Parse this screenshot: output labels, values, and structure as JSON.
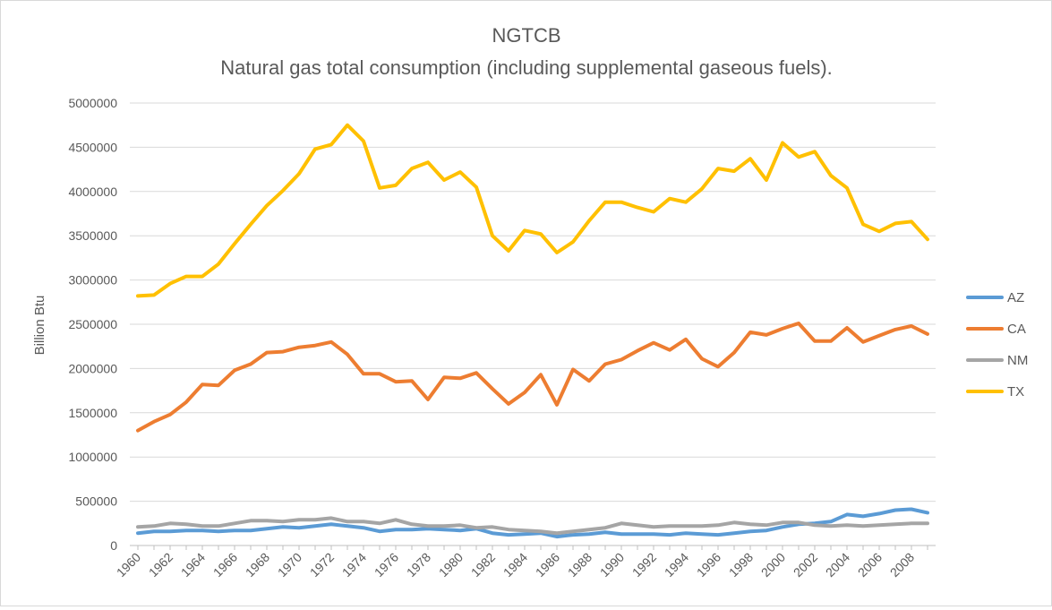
{
  "chart_data": {
    "type": "line",
    "title": "NGTCB",
    "subtitle": "Natural gas total consumption (including supplemental gaseous fuels).",
    "xlabel": "",
    "ylabel": "Billion Btu",
    "ylim": [
      0,
      5000000
    ],
    "yticks": [
      "0",
      "500000",
      "1000000",
      "1500000",
      "2000000",
      "2500000",
      "3000000",
      "3500000",
      "4000000",
      "4500000",
      "5000000"
    ],
    "xtick_labels": [
      "1960",
      "1962",
      "1964",
      "1966",
      "1968",
      "1970",
      "1972",
      "1974",
      "1976",
      "1978",
      "1980",
      "1982",
      "1984",
      "1986",
      "1988",
      "1990",
      "1992",
      "1994",
      "1996",
      "1998",
      "2000",
      "2002",
      "2004",
      "2006",
      "2008"
    ],
    "x": [
      1960,
      1961,
      1962,
      1963,
      1964,
      1965,
      1966,
      1967,
      1968,
      1969,
      1970,
      1971,
      1972,
      1973,
      1974,
      1975,
      1976,
      1977,
      1978,
      1979,
      1980,
      1981,
      1982,
      1983,
      1984,
      1985,
      1986,
      1987,
      1988,
      1989,
      1990,
      1991,
      1992,
      1993,
      1994,
      1995,
      1996,
      1997,
      1998,
      1999,
      2000,
      2001,
      2002,
      2003,
      2004,
      2005,
      2006,
      2007,
      2008,
      2009
    ],
    "legend_position": "right",
    "grid": true,
    "series": [
      {
        "name": "AZ",
        "color": "#5b9bd5",
        "values": [
          140000,
          160000,
          160000,
          170000,
          170000,
          160000,
          170000,
          170000,
          190000,
          210000,
          200000,
          220000,
          240000,
          220000,
          200000,
          160000,
          180000,
          180000,
          190000,
          180000,
          170000,
          190000,
          140000,
          120000,
          130000,
          140000,
          100000,
          120000,
          130000,
          150000,
          130000,
          130000,
          130000,
          120000,
          140000,
          130000,
          120000,
          140000,
          160000,
          170000,
          210000,
          240000,
          250000,
          270000,
          350000,
          330000,
          360000,
          400000,
          410000,
          370000
        ]
      },
      {
        "name": "CA",
        "color": "#ed7d31",
        "values": [
          1300000,
          1400000,
          1480000,
          1620000,
          1820000,
          1810000,
          1980000,
          2050000,
          2180000,
          2190000,
          2240000,
          2260000,
          2300000,
          2160000,
          1940000,
          1940000,
          1850000,
          1860000,
          1650000,
          1900000,
          1890000,
          1950000,
          1770000,
          1600000,
          1730000,
          1930000,
          1590000,
          1990000,
          1860000,
          2050000,
          2100000,
          2200000,
          2290000,
          2210000,
          2330000,
          2110000,
          2020000,
          2180000,
          2410000,
          2380000,
          2450000,
          2510000,
          2310000,
          2310000,
          2460000,
          2300000,
          2370000,
          2440000,
          2480000,
          2390000
        ]
      },
      {
        "name": "NM",
        "color": "#a5a5a5",
        "values": [
          210000,
          220000,
          250000,
          240000,
          220000,
          220000,
          250000,
          280000,
          280000,
          270000,
          290000,
          290000,
          310000,
          270000,
          270000,
          250000,
          290000,
          240000,
          220000,
          220000,
          230000,
          200000,
          210000,
          180000,
          170000,
          160000,
          140000,
          160000,
          180000,
          200000,
          250000,
          230000,
          210000,
          220000,
          220000,
          220000,
          230000,
          260000,
          240000,
          230000,
          260000,
          260000,
          230000,
          220000,
          230000,
          220000,
          230000,
          240000,
          250000,
          250000
        ]
      },
      {
        "name": "TX",
        "color": "#ffc000",
        "values": [
          2820000,
          2830000,
          2960000,
          3040000,
          3040000,
          3180000,
          3410000,
          3630000,
          3840000,
          4010000,
          4200000,
          4480000,
          4530000,
          4750000,
          4570000,
          4040000,
          4070000,
          4260000,
          4330000,
          4130000,
          4220000,
          4050000,
          3500000,
          3330000,
          3560000,
          3520000,
          3310000,
          3430000,
          3670000,
          3880000,
          3880000,
          3820000,
          3770000,
          3920000,
          3880000,
          4030000,
          4260000,
          4230000,
          4370000,
          4130000,
          4550000,
          4390000,
          4450000,
          4180000,
          4040000,
          3630000,
          3550000,
          3640000,
          3660000,
          3460000
        ]
      }
    ]
  }
}
